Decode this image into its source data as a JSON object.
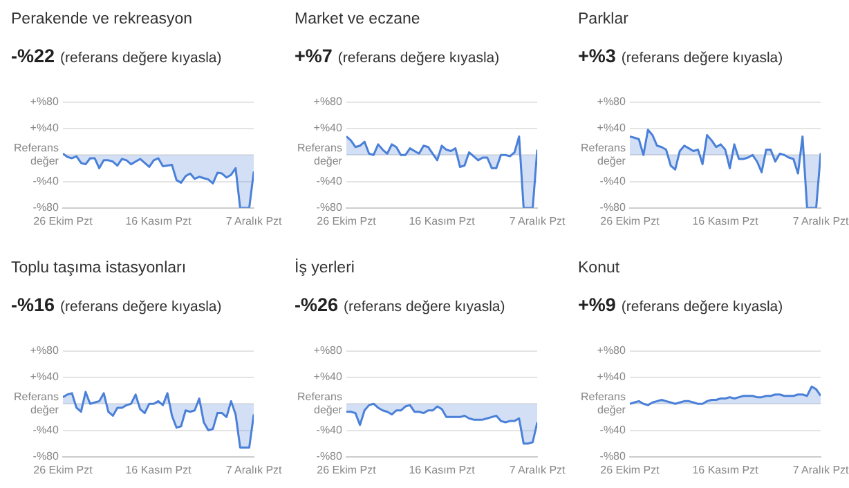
{
  "chart_data": [
    {
      "type": "area",
      "title": "Perakende ve rekreasyon",
      "subtitle": "-%22  (referans değere kıyasla)",
      "color": "#4a80d8",
      "grid": "y",
      "ylim": [
        -80,
        80
      ],
      "yticks": [
        {
          "value": 80,
          "label": "+%80"
        },
        {
          "value": 40,
          "label": "+%40"
        },
        {
          "value": 0,
          "label": "Referans değer"
        },
        {
          "value": -40,
          "label": "-%40"
        },
        {
          "value": -80,
          "label": "-%80"
        }
      ],
      "xlim": [
        "--10-26",
        "--12-07"
      ],
      "xticks": [
        {
          "value": "--10-26",
          "label": "26 Ekim Pzt"
        },
        {
          "value": "--11-16",
          "label": "16 Kasım Pzt"
        },
        {
          "value": "--12-07",
          "label": "7 Aralık Pzt"
        }
      ],
      "x": [
        "--10-26",
        "--10-27",
        "--10-28",
        "--10-29",
        "--10-30",
        "--10-31",
        "--11-01",
        "--11-02",
        "--11-03",
        "--11-04",
        "--11-05",
        "--11-06",
        "--11-07",
        "--11-08",
        "--11-09",
        "--11-10",
        "--11-11",
        "--11-12",
        "--11-13",
        "--11-14",
        "--11-15",
        "--11-16",
        "--11-17",
        "--11-18",
        "--11-19",
        "--11-20",
        "--11-21",
        "--11-22",
        "--11-23",
        "--11-24",
        "--11-25",
        "--11-26",
        "--11-27",
        "--11-28",
        "--11-29",
        "--11-30",
        "--12-01",
        "--12-02",
        "--12-03",
        "--12-04",
        "--12-05",
        "--12-06",
        "--12-07"
      ],
      "values": [
        2,
        -3,
        -5,
        -2,
        -12,
        -14,
        -5,
        -5,
        -20,
        -8,
        -8,
        -10,
        -16,
        -6,
        -8,
        -14,
        -10,
        -6,
        -12,
        -18,
        -8,
        -5,
        -17,
        -16,
        -15,
        -38,
        -42,
        -32,
        -28,
        -36,
        -33,
        -35,
        -37,
        -43,
        -27,
        -28,
        -34,
        -30,
        -20,
        -80,
        -80,
        -80,
        -25
      ]
    },
    {
      "type": "area",
      "title": "Market ve eczane",
      "subtitle": "+%7  (referans değere kıyasla)",
      "color": "#4a80d8",
      "grid": "y",
      "ylim": [
        -80,
        80
      ],
      "yticks": [
        {
          "value": 80,
          "label": "+%80"
        },
        {
          "value": 40,
          "label": "+%40"
        },
        {
          "value": 0,
          "label": "Referans değer"
        },
        {
          "value": -40,
          "label": "-%40"
        },
        {
          "value": -80,
          "label": "-%80"
        }
      ],
      "xlim": [
        "--10-26",
        "--12-07"
      ],
      "xticks": [
        {
          "value": "--10-26",
          "label": "26 Ekim Pzt"
        },
        {
          "value": "--11-16",
          "label": "16 Kasım Pzt"
        },
        {
          "value": "--12-07",
          "label": "7 Aralık Pzt"
        }
      ],
      "x": [
        "--10-26",
        "--10-27",
        "--10-28",
        "--10-29",
        "--10-30",
        "--10-31",
        "--11-01",
        "--11-02",
        "--11-03",
        "--11-04",
        "--11-05",
        "--11-06",
        "--11-07",
        "--11-08",
        "--11-09",
        "--11-10",
        "--11-11",
        "--11-12",
        "--11-13",
        "--11-14",
        "--11-15",
        "--11-16",
        "--11-17",
        "--11-18",
        "--11-19",
        "--11-20",
        "--11-21",
        "--11-22",
        "--11-23",
        "--11-24",
        "--11-25",
        "--11-26",
        "--11-27",
        "--11-28",
        "--11-29",
        "--11-30",
        "--12-01",
        "--12-02",
        "--12-03",
        "--12-04",
        "--12-05",
        "--12-06",
        "--12-07"
      ],
      "values": [
        28,
        22,
        12,
        14,
        20,
        2,
        0,
        16,
        8,
        2,
        16,
        12,
        0,
        0,
        10,
        6,
        2,
        14,
        12,
        2,
        -8,
        14,
        8,
        6,
        10,
        -18,
        -16,
        4,
        -2,
        -8,
        -4,
        -4,
        -20,
        -20,
        0,
        0,
        -2,
        4,
        28,
        -80,
        -80,
        -80,
        8
      ]
    },
    {
      "type": "area",
      "title": "Parklar",
      "subtitle": "+%3  (referans değere kıyasla)",
      "color": "#4a80d8",
      "grid": "y",
      "ylim": [
        -80,
        80
      ],
      "yticks": [
        {
          "value": 80,
          "label": "+%80"
        },
        {
          "value": 40,
          "label": "+%40"
        },
        {
          "value": 0,
          "label": "Referans değer"
        },
        {
          "value": -40,
          "label": "-%40"
        },
        {
          "value": -80,
          "label": "-%80"
        }
      ],
      "xlim": [
        "--10-26",
        "--12-07"
      ],
      "xticks": [
        {
          "value": "--10-26",
          "label": "26 Ekim Pzt"
        },
        {
          "value": "--11-16",
          "label": "16 Kasım Pzt"
        },
        {
          "value": "--12-07",
          "label": "7 Aralık Pzt"
        }
      ],
      "x": [
        "--10-26",
        "--10-27",
        "--10-28",
        "--10-29",
        "--10-30",
        "--10-31",
        "--11-01",
        "--11-02",
        "--11-03",
        "--11-04",
        "--11-05",
        "--11-06",
        "--11-07",
        "--11-08",
        "--11-09",
        "--11-10",
        "--11-11",
        "--11-12",
        "--11-13",
        "--11-14",
        "--11-15",
        "--11-16",
        "--11-17",
        "--11-18",
        "--11-19",
        "--11-20",
        "--11-21",
        "--11-22",
        "--11-23",
        "--11-24",
        "--11-25",
        "--11-26",
        "--11-27",
        "--11-28",
        "--11-29",
        "--11-30",
        "--12-01",
        "--12-02",
        "--12-03",
        "--12-04",
        "--12-05",
        "--12-06",
        "--12-07"
      ],
      "values": [
        28,
        26,
        24,
        0,
        38,
        30,
        14,
        12,
        8,
        -16,
        -22,
        6,
        14,
        10,
        6,
        8,
        -14,
        30,
        22,
        12,
        16,
        8,
        -20,
        16,
        -6,
        -6,
        -4,
        0,
        -10,
        -26,
        8,
        8,
        -10,
        2,
        0,
        -4,
        -6,
        -28,
        28,
        -80,
        -80,
        -80,
        3
      ]
    },
    {
      "type": "area",
      "title": "Toplu taşıma istasyonları",
      "subtitle": "-%16  (referans değere kıyasla)",
      "color": "#4a80d8",
      "grid": "y",
      "ylim": [
        -80,
        80
      ],
      "yticks": [
        {
          "value": 80,
          "label": "+%80"
        },
        {
          "value": 40,
          "label": "+%40"
        },
        {
          "value": 0,
          "label": "Referans değer"
        },
        {
          "value": -40,
          "label": "-%40"
        },
        {
          "value": -80,
          "label": "-%80"
        }
      ],
      "xlim": [
        "--10-26",
        "--12-07"
      ],
      "xticks": [
        {
          "value": "--10-26",
          "label": "26 Ekim Pzt"
        },
        {
          "value": "--11-16",
          "label": "16 Kasım Pzt"
        },
        {
          "value": "--12-07",
          "label": "7 Aralık Pzt"
        }
      ],
      "x": [
        "--10-26",
        "--10-27",
        "--10-28",
        "--10-29",
        "--10-30",
        "--10-31",
        "--11-01",
        "--11-02",
        "--11-03",
        "--11-04",
        "--11-05",
        "--11-06",
        "--11-07",
        "--11-08",
        "--11-09",
        "--11-10",
        "--11-11",
        "--11-12",
        "--11-13",
        "--11-14",
        "--11-15",
        "--11-16",
        "--11-17",
        "--11-18",
        "--11-19",
        "--11-20",
        "--11-21",
        "--11-22",
        "--11-23",
        "--11-24",
        "--11-25",
        "--11-26",
        "--11-27",
        "--11-28",
        "--11-29",
        "--11-30",
        "--12-01",
        "--12-02",
        "--12-03",
        "--12-04",
        "--12-05",
        "--12-06",
        "--12-07"
      ],
      "values": [
        10,
        14,
        16,
        -6,
        -12,
        18,
        0,
        2,
        4,
        16,
        -12,
        -18,
        -6,
        -6,
        -2,
        0,
        14,
        -8,
        -14,
        0,
        0,
        4,
        -2,
        16,
        -18,
        -36,
        -34,
        -10,
        -12,
        -10,
        8,
        -28,
        -40,
        -38,
        -14,
        -14,
        -20,
        4,
        -16,
        -66,
        -66,
        -66,
        -16
      ]
    },
    {
      "type": "area",
      "title": "İş yerleri",
      "subtitle": "-%26  (referans değere kıyasla)",
      "color": "#4a80d8",
      "grid": "y",
      "ylim": [
        -80,
        80
      ],
      "yticks": [
        {
          "value": 80,
          "label": "+%80"
        },
        {
          "value": 40,
          "label": "+%40"
        },
        {
          "value": 0,
          "label": "Referans değer"
        },
        {
          "value": -40,
          "label": "-%40"
        },
        {
          "value": -80,
          "label": "-%80"
        }
      ],
      "xlim": [
        "--10-26",
        "--12-07"
      ],
      "xticks": [
        {
          "value": "--10-26",
          "label": "26 Ekim Pzt"
        },
        {
          "value": "--11-16",
          "label": "16 Kasım Pzt"
        },
        {
          "value": "--12-07",
          "label": "7 Aralık Pzt"
        }
      ],
      "x": [
        "--10-26",
        "--10-27",
        "--10-28",
        "--10-29",
        "--10-30",
        "--10-31",
        "--11-01",
        "--11-02",
        "--11-03",
        "--11-04",
        "--11-05",
        "--11-06",
        "--11-07",
        "--11-08",
        "--11-09",
        "--11-10",
        "--11-11",
        "--11-12",
        "--11-13",
        "--11-14",
        "--11-15",
        "--11-16",
        "--11-17",
        "--11-18",
        "--11-19",
        "--11-20",
        "--11-21",
        "--11-22",
        "--11-23",
        "--11-24",
        "--11-25",
        "--11-26",
        "--11-27",
        "--11-28",
        "--11-29",
        "--11-30",
        "--12-01",
        "--12-02",
        "--12-03",
        "--12-04",
        "--12-05",
        "--12-06",
        "--12-07"
      ],
      "values": [
        -12,
        -12,
        -14,
        -32,
        -10,
        -2,
        0,
        -6,
        -10,
        -12,
        -16,
        -10,
        -10,
        -4,
        -2,
        -12,
        -12,
        -14,
        -10,
        -10,
        -4,
        -8,
        -20,
        -20,
        -20,
        -20,
        -18,
        -22,
        -24,
        -24,
        -24,
        -22,
        -20,
        -18,
        -26,
        -28,
        -26,
        -26,
        -22,
        -60,
        -60,
        -58,
        -28
      ]
    },
    {
      "type": "area",
      "title": "Konut",
      "subtitle": "+%9  (referans değere kıyasla)",
      "color": "#4a80d8",
      "grid": "y",
      "ylim": [
        -80,
        80
      ],
      "yticks": [
        {
          "value": 80,
          "label": "+%80"
        },
        {
          "value": 40,
          "label": "+%40"
        },
        {
          "value": 0,
          "label": "Referans değer"
        },
        {
          "value": -40,
          "label": "-%40"
        },
        {
          "value": -80,
          "label": "-%80"
        }
      ],
      "xlim": [
        "--10-26",
        "--12-07"
      ],
      "xticks": [
        {
          "value": "--10-26",
          "label": "26 Ekim Pzt"
        },
        {
          "value": "--11-16",
          "label": "16 Kasım Pzt"
        },
        {
          "value": "--12-07",
          "label": "7 Aralık Pzt"
        }
      ],
      "x": [
        "--10-26",
        "--10-27",
        "--10-28",
        "--10-29",
        "--10-30",
        "--10-31",
        "--11-01",
        "--11-02",
        "--11-03",
        "--11-04",
        "--11-05",
        "--11-06",
        "--11-07",
        "--11-08",
        "--11-09",
        "--11-10",
        "--11-11",
        "--11-12",
        "--11-13",
        "--11-14",
        "--11-15",
        "--11-16",
        "--11-17",
        "--11-18",
        "--11-19",
        "--11-20",
        "--11-21",
        "--11-22",
        "--11-23",
        "--11-24",
        "--11-25",
        "--11-26",
        "--11-27",
        "--11-28",
        "--11-29",
        "--11-30",
        "--12-01",
        "--12-02",
        "--12-03",
        "--12-04",
        "--12-05",
        "--12-06",
        "--12-07"
      ],
      "values": [
        0,
        2,
        4,
        0,
        -2,
        2,
        4,
        6,
        4,
        2,
        0,
        2,
        4,
        4,
        2,
        0,
        0,
        4,
        6,
        6,
        8,
        8,
        10,
        8,
        10,
        12,
        12,
        12,
        10,
        10,
        12,
        12,
        14,
        14,
        12,
        12,
        12,
        14,
        14,
        12,
        26,
        22,
        12
      ]
    }
  ]
}
